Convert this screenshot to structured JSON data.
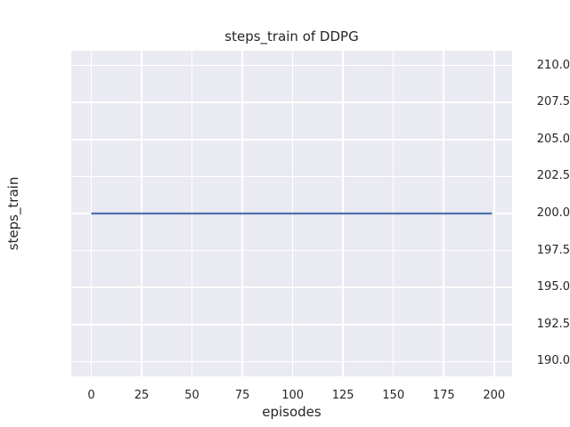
{
  "chart_data": {
    "type": "line",
    "title": "steps_train of DDPG",
    "xlabel": "episodes",
    "ylabel": "steps_train",
    "x_ticks": [
      0,
      25,
      50,
      75,
      100,
      125,
      150,
      175,
      200
    ],
    "x_tick_labels": [
      "0",
      "25",
      "50",
      "75",
      "100",
      "125",
      "150",
      "175",
      "200"
    ],
    "y_ticks": [
      190.0,
      192.5,
      195.0,
      197.5,
      200.0,
      202.5,
      205.0,
      207.5,
      210.0
    ],
    "y_tick_labels": [
      "190.0",
      "192.5",
      "195.0",
      "197.5",
      "200.0",
      "202.5",
      "205.0",
      "207.5",
      "210.0"
    ],
    "xlim": [
      -9.95,
      208.95
    ],
    "ylim": [
      189.0,
      211.0
    ],
    "grid": true,
    "legend_position": "none",
    "style": {
      "plot_background": "#eaeaf2",
      "grid_color": "#ffffff",
      "text_color": "#262626",
      "line_color": "#4c72b0",
      "figure_background": "#ffffff"
    },
    "series": [
      {
        "name": "steps_train",
        "color": "#4c72b0",
        "constant_value": 200,
        "x": [
          0,
          199
        ],
        "y": [
          200,
          200
        ]
      }
    ]
  }
}
